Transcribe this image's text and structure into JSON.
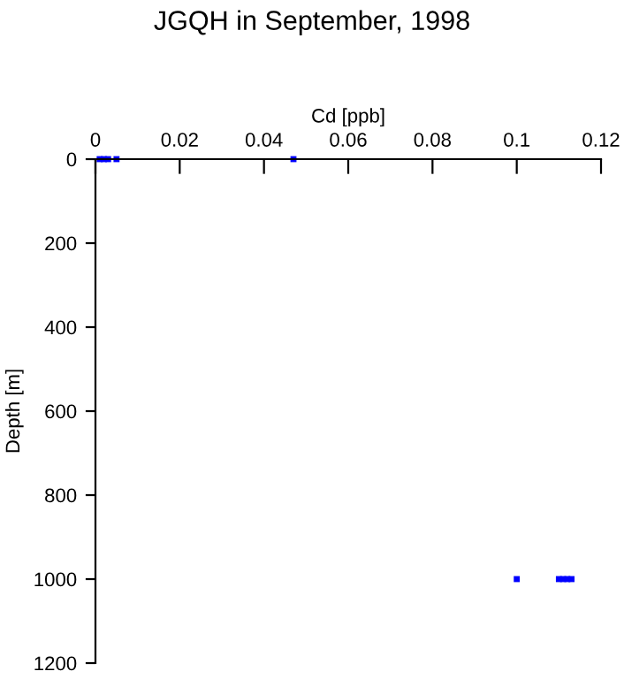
{
  "chart_data": {
    "type": "scatter",
    "title": "JGQH in September, 1998",
    "xlabel": "Cd [ppb]",
    "ylabel": "Depth [m]",
    "x": [
      0.001,
      0.002,
      0.003,
      0.005,
      0.047,
      0.1,
      0.11,
      0.111,
      0.112,
      0.113
    ],
    "series": [
      {
        "color": "#0000ff",
        "values": [
          0,
          0,
          0,
          0,
          0,
          1000,
          1000,
          1000,
          1000,
          1000
        ]
      }
    ],
    "xlim": [
      0,
      0.12
    ],
    "xticks": [
      0,
      0.02,
      0.04,
      0.06,
      0.08,
      0.1,
      0.12
    ],
    "ylim": [
      1200,
      0
    ],
    "yticks": [
      0,
      200,
      400,
      600,
      800,
      1000,
      1200
    ],
    "marker": "square",
    "grid": false,
    "legend": false
  }
}
